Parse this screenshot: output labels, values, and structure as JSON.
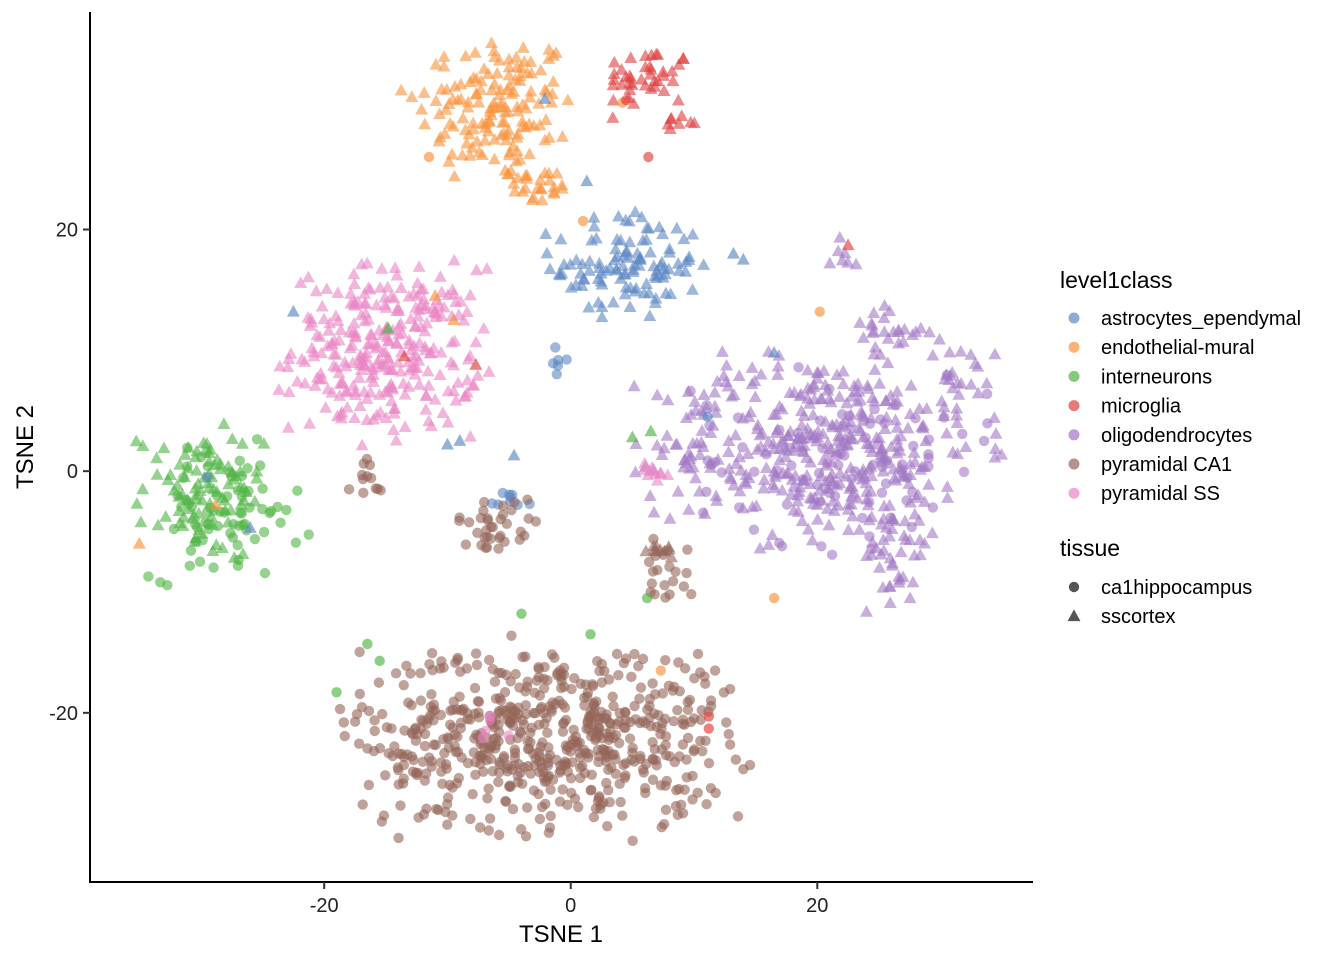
{
  "chart_data": {
    "type": "scatter",
    "title": "",
    "xlabel": "TSNE 1",
    "ylabel": "TSNE 2",
    "xlim": [
      -39,
      37.5
    ],
    "ylim": [
      -34,
      38
    ],
    "x_ticks": [
      -20,
      0,
      20
    ],
    "y_ticks": [
      -20,
      0,
      20
    ],
    "x_tick_labels": [
      "-20",
      "0",
      "20"
    ],
    "y_tick_labels": [
      "-20",
      "0",
      "20"
    ],
    "grid": false,
    "legend_placement": "right",
    "color_legend": {
      "title": "level1class",
      "entries": [
        {
          "name": "astrocytes_ependymal",
          "color": "#5b87c3"
        },
        {
          "name": "endothelial-mural",
          "color": "#f8923b"
        },
        {
          "name": "interneurons",
          "color": "#4fb443"
        },
        {
          "name": "microglia",
          "color": "#e03e3e"
        },
        {
          "name": "oligodendrocytes",
          "color": "#a278c4"
        },
        {
          "name": "pyramidal CA1",
          "color": "#946659"
        },
        {
          "name": "pyramidal SS",
          "color": "#e985c5"
        }
      ]
    },
    "shape_legend": {
      "title": "tissue",
      "entries": [
        {
          "name": "ca1hippocampus",
          "shape": "circle"
        },
        {
          "name": "sscortex",
          "shape": "triangle"
        }
      ]
    },
    "clusters": [
      {
        "series": "endothelial-mural",
        "shape": "triangle",
        "cx": -6,
        "cy": 30,
        "sx": 3.2,
        "sy": 3.2,
        "n": 150
      },
      {
        "series": "endothelial-mural",
        "shape": "triangle",
        "cx": -2.5,
        "cy": 23.5,
        "sx": 1.3,
        "sy": 0.8,
        "n": 22
      },
      {
        "series": "microglia",
        "shape": "triangle",
        "cx": 6.2,
        "cy": 32.5,
        "sx": 1.8,
        "sy": 1.3,
        "n": 40
      },
      {
        "series": "microglia",
        "shape": "triangle",
        "cx": 9,
        "cy": 29,
        "sx": 0.6,
        "sy": 0.5,
        "n": 8
      },
      {
        "series": "astrocytes_ependymal",
        "shape": "triangle",
        "cx": 4.5,
        "cy": 17,
        "sx": 3,
        "sy": 2.2,
        "n": 110
      },
      {
        "series": "astrocytes_ependymal",
        "shape": "circle",
        "cx": -0.8,
        "cy": 9.2,
        "sx": 0.3,
        "sy": 0.6,
        "n": 6
      },
      {
        "series": "astrocytes_ependymal",
        "shape": "circle",
        "cx": -4.7,
        "cy": -2.2,
        "sx": 0.9,
        "sy": 0.4,
        "n": 9
      },
      {
        "series": "pyramidal SS",
        "shape": "triangle",
        "cx": -15,
        "cy": 10,
        "sx": 3.8,
        "sy": 3.4,
        "n": 290
      },
      {
        "series": "interneurons",
        "shape": "triangle",
        "cx": -30,
        "cy": -2,
        "sx": 2.5,
        "sy": 2.7,
        "n": 90
      },
      {
        "series": "interneurons",
        "shape": "circle",
        "cx": -28,
        "cy": -3.5,
        "sx": 3,
        "sy": 2.7,
        "n": 70
      },
      {
        "series": "oligodendrocytes",
        "shape": "triangle",
        "cx": 20,
        "cy": 2,
        "sx": 6.5,
        "sy": 3.8,
        "n": 380
      },
      {
        "series": "oligodendrocytes",
        "shape": "circle",
        "cx": 22,
        "cy": 1,
        "sx": 6,
        "sy": 3.5,
        "n": 90
      },
      {
        "series": "oligodendrocytes",
        "shape": "triangle",
        "cx": 26.5,
        "cy": -7,
        "sx": 1.3,
        "sy": 2.2,
        "n": 35
      },
      {
        "series": "oligodendrocytes",
        "shape": "triangle",
        "cx": 31.5,
        "cy": 7.5,
        "sx": 1.5,
        "sy": 1.6,
        "n": 25
      },
      {
        "series": "oligodendrocytes",
        "shape": "triangle",
        "cx": 25.5,
        "cy": 11.5,
        "sx": 1.6,
        "sy": 1.2,
        "n": 25
      },
      {
        "series": "oligodendrocytes",
        "shape": "triangle",
        "cx": 22,
        "cy": 18,
        "sx": 0.5,
        "sy": 0.7,
        "n": 7
      },
      {
        "series": "pyramidal CA1",
        "shape": "circle",
        "cx": -2,
        "cy": -22,
        "sx": 7.5,
        "sy": 3.8,
        "n": 620
      },
      {
        "series": "pyramidal CA1",
        "shape": "circle",
        "cx": -6,
        "cy": -4.5,
        "sx": 1.6,
        "sy": 1.1,
        "n": 35
      },
      {
        "series": "pyramidal CA1",
        "shape": "circle",
        "cx": -16.5,
        "cy": -0.5,
        "sx": 0.8,
        "sy": 0.9,
        "n": 12
      },
      {
        "series": "pyramidal CA1",
        "shape": "circle",
        "cx": 8,
        "cy": -8,
        "sx": 1,
        "sy": 1.3,
        "n": 20
      },
      {
        "series": "pyramidal CA1",
        "shape": "triangle",
        "cx": 7,
        "cy": -6.5,
        "sx": 1.3,
        "sy": 0.6,
        "n": 10
      },
      {
        "series": "pyramidal SS",
        "shape": "triangle",
        "cx": 6.5,
        "cy": 0,
        "sx": 0.7,
        "sy": 0.5,
        "n": 10
      },
      {
        "series": "pyramidal SS",
        "shape": "circle",
        "cx": -6,
        "cy": -22,
        "sx": 2,
        "sy": 1,
        "n": 5
      }
    ],
    "points": [
      {
        "x": 16.5,
        "y": -10.5,
        "series": "endothelial-mural",
        "shape": "circle"
      },
      {
        "x": 7.3,
        "y": -16.5,
        "series": "endothelial-mural",
        "shape": "circle"
      },
      {
        "x": -11,
        "y": 14.5,
        "series": "endothelial-mural",
        "shape": "triangle"
      },
      {
        "x": -9.5,
        "y": 12.5,
        "series": "endothelial-mural",
        "shape": "triangle"
      },
      {
        "x": 1,
        "y": 20.7,
        "series": "endothelial-mural",
        "shape": "circle"
      },
      {
        "x": 20.2,
        "y": 13.2,
        "series": "endothelial-mural",
        "shape": "circle"
      },
      {
        "x": -28.8,
        "y": -2.8,
        "series": "endothelial-mural",
        "shape": "triangle"
      },
      {
        "x": -35,
        "y": -6,
        "series": "endothelial-mural",
        "shape": "triangle"
      },
      {
        "x": -11.5,
        "y": 26,
        "series": "endothelial-mural",
        "shape": "circle"
      },
      {
        "x": 4.2,
        "y": 30.5,
        "series": "endothelial-mural",
        "shape": "circle"
      },
      {
        "x": 4.5,
        "y": 30.7,
        "series": "microglia",
        "shape": "circle"
      },
      {
        "x": 6.3,
        "y": 26,
        "series": "microglia",
        "shape": "circle"
      },
      {
        "x": 22.5,
        "y": 18.7,
        "series": "microglia",
        "shape": "triangle"
      },
      {
        "x": -7.7,
        "y": 8.8,
        "series": "microglia",
        "shape": "triangle"
      },
      {
        "x": 11.2,
        "y": -21.3,
        "series": "microglia",
        "shape": "circle"
      },
      {
        "x": 11.2,
        "y": -20.3,
        "series": "microglia",
        "shape": "circle"
      },
      {
        "x": -13.5,
        "y": 9.5,
        "series": "microglia",
        "shape": "triangle"
      },
      {
        "x": -22.5,
        "y": 13.2,
        "series": "astrocytes_ependymal",
        "shape": "triangle"
      },
      {
        "x": -9,
        "y": 2.5,
        "series": "astrocytes_ependymal",
        "shape": "triangle"
      },
      {
        "x": -10,
        "y": 2.2,
        "series": "astrocytes_ependymal",
        "shape": "triangle"
      },
      {
        "x": -4.6,
        "y": 1.3,
        "series": "astrocytes_ependymal",
        "shape": "triangle"
      },
      {
        "x": 11.1,
        "y": 4.5,
        "series": "astrocytes_ependymal",
        "shape": "circle"
      },
      {
        "x": 13.2,
        "y": 18,
        "series": "astrocytes_ependymal",
        "shape": "triangle"
      },
      {
        "x": 14,
        "y": 17.5,
        "series": "astrocytes_ependymal",
        "shape": "triangle"
      },
      {
        "x": 16.5,
        "y": 9.8,
        "series": "astrocytes_ependymal",
        "shape": "triangle"
      },
      {
        "x": -26,
        "y": -4.7,
        "series": "astrocytes_ependymal",
        "shape": "triangle"
      },
      {
        "x": -29.5,
        "y": -0.5,
        "series": "astrocytes_ependymal",
        "shape": "circle"
      },
      {
        "x": -2.1,
        "y": 30.8,
        "series": "astrocytes_ependymal",
        "shape": "triangle"
      },
      {
        "x": 1.3,
        "y": 24,
        "series": "astrocytes_ependymal",
        "shape": "triangle"
      },
      {
        "x": -14.8,
        "y": 11.8,
        "series": "interneurons",
        "shape": "triangle"
      },
      {
        "x": 5,
        "y": 2.8,
        "series": "interneurons",
        "shape": "triangle"
      },
      {
        "x": 6.5,
        "y": 3.3,
        "series": "interneurons",
        "shape": "triangle"
      },
      {
        "x": 6.2,
        "y": -10.5,
        "series": "interneurons",
        "shape": "circle"
      },
      {
        "x": -16.5,
        "y": -14.3,
        "series": "interneurons",
        "shape": "circle"
      },
      {
        "x": -19,
        "y": -18.3,
        "series": "interneurons",
        "shape": "circle"
      },
      {
        "x": -15.5,
        "y": -15.7,
        "series": "interneurons",
        "shape": "circle"
      },
      {
        "x": -4,
        "y": -11.8,
        "series": "interneurons",
        "shape": "circle"
      },
      {
        "x": 1.6,
        "y": -13.5,
        "series": "interneurons",
        "shape": "circle"
      }
    ]
  }
}
